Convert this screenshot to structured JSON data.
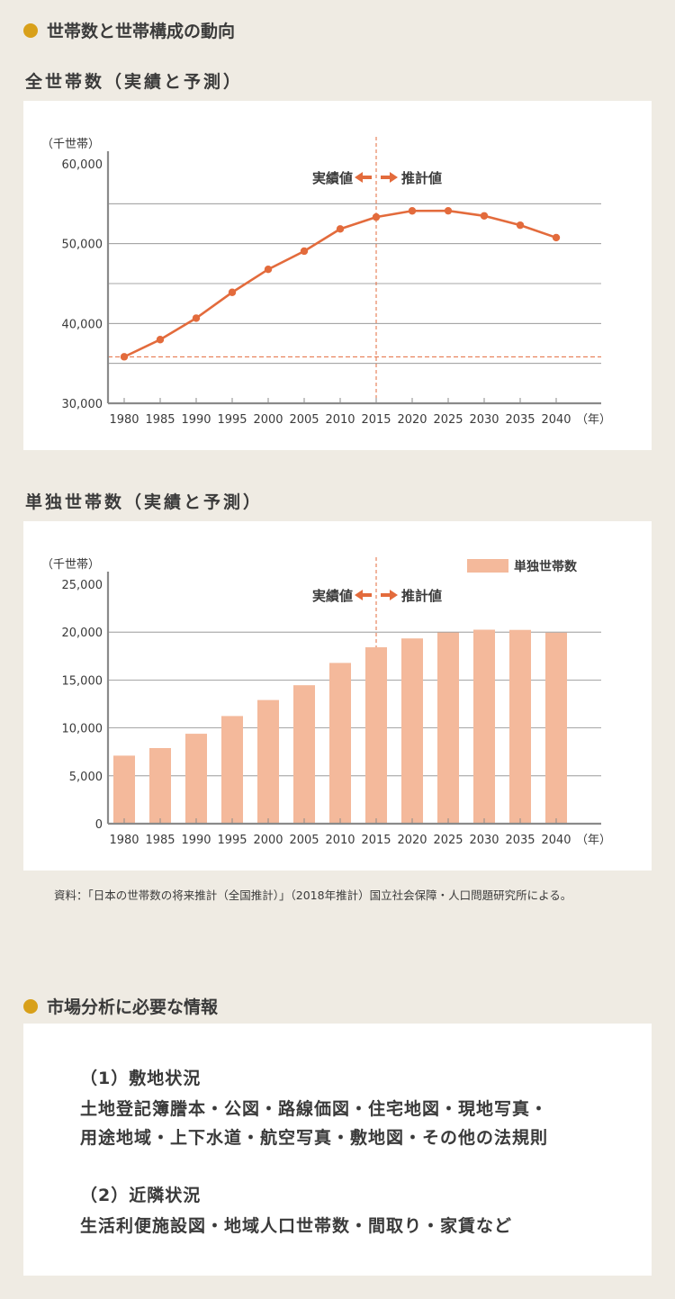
{
  "sections": {
    "trend_heading": "世帯数と世帯構成の動向",
    "market_heading": "市場分析に必要な情報"
  },
  "colors": {
    "line": "#e36b3c",
    "bar": "#f4b99b",
    "accent_dot": "#d8a01a",
    "background": "#efebe3"
  },
  "arrows": {
    "left_label": "実績値",
    "right_label": "推計値"
  },
  "chart_data": [
    {
      "type": "line",
      "title": "全世帯数（実績と予測）",
      "ylabel": "（千世帯）",
      "xunit": "（年）",
      "categories": [
        "1980",
        "1985",
        "1990",
        "1995",
        "2000",
        "2005",
        "2010",
        "2015",
        "2020",
        "2025",
        "2030",
        "2035",
        "2040"
      ],
      "series": [
        {
          "name": "全世帯数",
          "values": [
            35824,
            37980,
            40670,
            43900,
            46782,
            49063,
            51842,
            53332,
            54107,
            54116,
            53484,
            52315,
            50757
          ]
        }
      ],
      "ylim": [
        30000,
        60000
      ],
      "yticks": [
        "60,000",
        "50,000",
        "40,000",
        "30,000"
      ],
      "yticks_values": [
        60000,
        50000,
        40000,
        30000
      ],
      "gridlines": [
        55000,
        50000,
        45000,
        40000,
        35000
      ],
      "reference_line": 35824,
      "divider_year": "2015"
    },
    {
      "type": "bar",
      "title": "単独世帯数（実績と予測）",
      "ylabel": "（千世帯）",
      "xunit": "（年）",
      "legend": "単独世帯数",
      "categories": [
        "1980",
        "1985",
        "1990",
        "1995",
        "2000",
        "2005",
        "2010",
        "2015",
        "2020",
        "2025",
        "2030",
        "2035",
        "2040"
      ],
      "series": [
        {
          "name": "単独世帯数",
          "values": [
            7105,
            7895,
            9390,
            11239,
            12911,
            14457,
            16785,
            18418,
            19342,
            19960,
            20254,
            20233,
            19944
          ]
        }
      ],
      "ylim": [
        0,
        25000
      ],
      "yticks": [
        "25,000",
        "20,000",
        "15,000",
        "10,000",
        "5,000",
        "0"
      ],
      "yticks_values": [
        25000,
        20000,
        15000,
        10000,
        5000,
        0
      ],
      "gridlines": [
        20000,
        15000,
        10000,
        5000
      ],
      "divider_year": "2015"
    }
  ],
  "source": "資料：「日本の世帯数の将来推計（全国推計）」（2018年推計）国立社会保障・人口問題研究所による。",
  "info": {
    "item1_title": "（1）敷地状況",
    "item1_line1": "土地登記簿謄本・公図・路線価図・住宅地図・現地写真・",
    "item1_line2": "用途地域・上下水道・航空写真・敷地図・その他の法規則",
    "item2_title": "（2）近隣状況",
    "item2_line1": "生活利便施設図・地域人口世帯数・間取り・家賃など"
  }
}
